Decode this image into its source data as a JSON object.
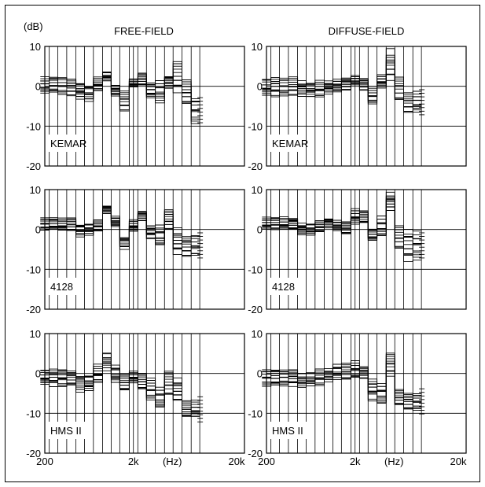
{
  "unit_label": "(dB)",
  "hz_label": "(Hz)",
  "columns": [
    "FREE-FIELD",
    "DIFFUSE-FIELD"
  ],
  "chart_data": [
    {
      "type": "line",
      "panel": "KEMAR free-field",
      "label": "KEMAR",
      "ylim": [
        -20,
        10
      ],
      "yticks": [
        10,
        0,
        -10,
        -20
      ],
      "xlabels": [
        "200",
        "2k",
        "(Hz)",
        "20k"
      ],
      "x_scale": "log",
      "xlim": [
        200,
        20000
      ],
      "bands": [
        200,
        250,
        315,
        400,
        500,
        630,
        800,
        1000,
        1250,
        1600,
        2000,
        2500,
        3150,
        4000,
        5000,
        6300,
        8000,
        10000
      ],
      "center": [
        0.3,
        0.5,
        0.2,
        -0.2,
        -1.2,
        -1.8,
        0.6,
        2.4,
        -1.0,
        -3.6,
        0.9,
        1.7,
        -1.0,
        -1.3,
        1.0,
        2.2,
        -1.5,
        -6.0
      ],
      "spread": [
        2.0,
        2.0,
        2.0,
        2.0,
        2.0,
        2.0,
        1.5,
        1.2,
        1.5,
        2.5,
        1.0,
        1.5,
        2.0,
        2.5,
        1.5,
        3.5,
        3.0,
        3.0
      ]
    },
    {
      "type": "line",
      "panel": "KEMAR diffuse-field",
      "label": "KEMAR",
      "ylim": [
        -20,
        10
      ],
      "yticks": [
        10,
        0,
        -10,
        -20
      ],
      "xlabels": [
        "200",
        "2k",
        "(Hz)",
        "20k"
      ],
      "x_scale": "log",
      "xlim": [
        200,
        20000
      ],
      "bands": [
        200,
        250,
        315,
        400,
        500,
        630,
        800,
        1000,
        1250,
        1600,
        2000,
        2500,
        3150,
        4000,
        5000,
        6300,
        8000,
        10000
      ],
      "center": [
        -0.3,
        -0.2,
        -0.1,
        0.0,
        -0.8,
        -0.8,
        -0.6,
        -0.3,
        0.1,
        0.7,
        1.6,
        0.5,
        -2.3,
        1.3,
        5.5,
        -0.6,
        -4.0,
        -4.0
      ],
      "spread": [
        2.2,
        2.2,
        2.2,
        2.2,
        2.0,
        1.8,
        1.8,
        1.5,
        1.5,
        1.5,
        1.2,
        1.5,
        2.0,
        1.5,
        3.5,
        3.0,
        2.5,
        2.5
      ]
    },
    {
      "type": "line",
      "panel": "4128 free-field",
      "label": "4128",
      "ylim": [
        -20,
        10
      ],
      "yticks": [
        10,
        0,
        -10,
        -20
      ],
      "xlabels": [
        "200",
        "2k",
        "(Hz)",
        "20k"
      ],
      "x_scale": "log",
      "xlim": [
        200,
        20000
      ],
      "bands": [
        200,
        250,
        315,
        400,
        500,
        630,
        800,
        1000,
        1250,
        1600,
        2000,
        2500,
        3150,
        4000,
        5000,
        6300,
        8000,
        10000
      ],
      "center": [
        1.5,
        1.5,
        1.3,
        1.2,
        -0.3,
        0.0,
        1.0,
        5.0,
        2.0,
        -3.3,
        1.0,
        3.5,
        -0.6,
        -1.5,
        2.5,
        -3.0,
        -4.0,
        -4.0
      ],
      "spread": [
        1.5,
        1.5,
        1.5,
        1.5,
        1.5,
        1.5,
        1.2,
        1.0,
        1.2,
        1.5,
        1.5,
        1.2,
        1.5,
        2.5,
        2.5,
        3.0,
        2.5,
        2.5
      ]
    },
    {
      "type": "line",
      "panel": "4128 diffuse-field",
      "label": "4128",
      "ylim": [
        -20,
        10
      ],
      "yticks": [
        10,
        0,
        -10,
        -20
      ],
      "xlabels": [
        "200",
        "2k",
        "(Hz)",
        "20k"
      ],
      "x_scale": "log",
      "xlim": [
        200,
        20000
      ],
      "bands": [
        200,
        250,
        315,
        400,
        500,
        630,
        800,
        1000,
        1250,
        1600,
        2000,
        2500,
        3150,
        4000,
        5000,
        6300,
        8000,
        10000
      ],
      "center": [
        1.5,
        1.5,
        1.5,
        1.5,
        0.0,
        0.0,
        0.8,
        1.5,
        1.0,
        0.2,
        3.2,
        3.0,
        -1.3,
        0.8,
        7.0,
        -2.0,
        -4.0,
        -4.0
      ],
      "spread": [
        1.5,
        1.5,
        1.5,
        1.5,
        1.5,
        1.5,
        1.2,
        1.2,
        1.2,
        1.5,
        2.0,
        1.5,
        1.5,
        2.5,
        2.0,
        3.0,
        3.5,
        3.5
      ]
    },
    {
      "type": "line",
      "panel": "HMS II free-field",
      "label": "HMS II",
      "ylim": [
        -20,
        10
      ],
      "yticks": [
        10,
        0,
        -10,
        -20
      ],
      "xlabels": [
        "200",
        "2k",
        "(Hz)",
        "20k"
      ],
      "x_scale": "log",
      "xlim": [
        200,
        20000
      ],
      "bands": [
        200,
        250,
        315,
        400,
        500,
        630,
        800,
        1000,
        1250,
        1600,
        2000,
        2500,
        3150,
        4000,
        5000,
        6300,
        8000,
        10000
      ],
      "center": [
        -1.0,
        -1.0,
        -1.0,
        -1.2,
        -2.5,
        -2.5,
        0.0,
        3.0,
        0.0,
        -2.3,
        -1.0,
        -2.0,
        -4.0,
        -6.0,
        -2.5,
        -4.0,
        -9.0,
        -9.0
      ],
      "spread": [
        2.0,
        2.0,
        2.0,
        2.0,
        2.0,
        2.0,
        2.0,
        2.0,
        2.0,
        2.0,
        1.5,
        2.0,
        2.5,
        2.5,
        3.0,
        2.5,
        2.0,
        2.0
      ]
    },
    {
      "type": "line",
      "panel": "HMS II diffuse-field",
      "label": "HMS II",
      "ylim": [
        -20,
        10
      ],
      "yticks": [
        10,
        0,
        -10,
        -20
      ],
      "xlabels": [
        "200",
        "2k",
        "(Hz)",
        "20k"
      ],
      "x_scale": "log",
      "xlim": [
        200,
        20000
      ],
      "bands": [
        200,
        250,
        315,
        400,
        500,
        630,
        800,
        1000,
        1250,
        1600,
        2000,
        2500,
        3150,
        4000,
        5000,
        6300,
        8000,
        10000
      ],
      "center": [
        -1.0,
        -1.0,
        -1.0,
        -1.0,
        -1.8,
        -1.5,
        -1.0,
        -0.5,
        0.5,
        0.5,
        1.0,
        0.3,
        -4.0,
        -5.0,
        2.5,
        -6.0,
        -7.0,
        -7.0
      ],
      "spread": [
        2.0,
        2.0,
        2.0,
        2.0,
        1.8,
        1.8,
        1.8,
        1.5,
        1.8,
        2.0,
        2.0,
        1.5,
        2.5,
        2.5,
        3.0,
        2.0,
        2.0,
        2.0
      ]
    }
  ]
}
